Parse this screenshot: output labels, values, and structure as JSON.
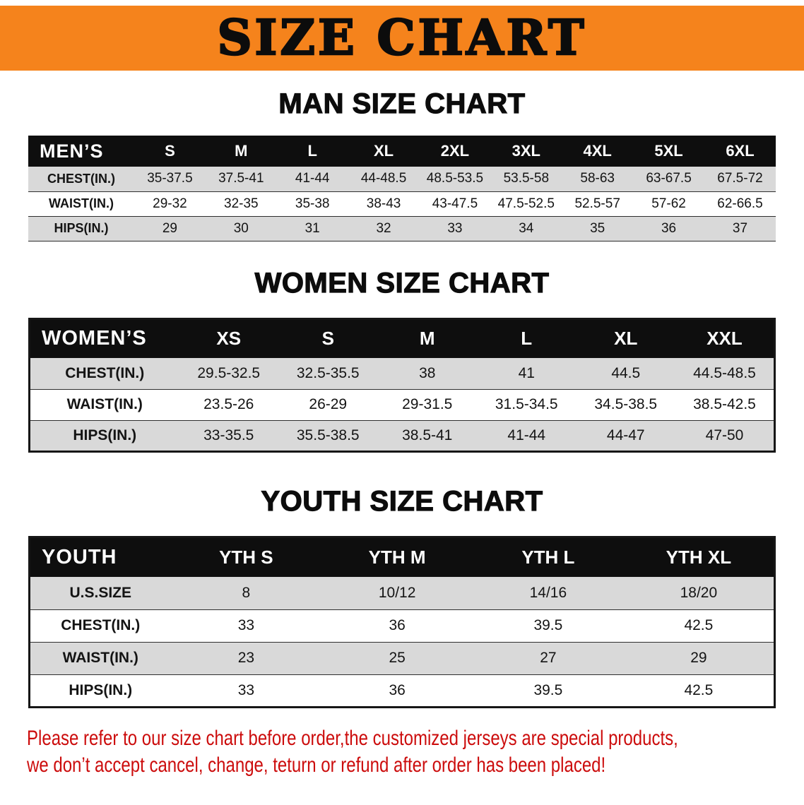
{
  "banner": {
    "title": "SIZE CHART"
  },
  "colors": {
    "banner_bg": "#f5831c",
    "table_header_bg": "#0e0e0e",
    "stripe_row": "#d9d9d9",
    "disclaimer_text": "#cc0c0c"
  },
  "men": {
    "heading": "MAN SIZE CHART",
    "label": "MEN’S",
    "columns": [
      "S",
      "M",
      "L",
      "XL",
      "2XL",
      "3XL",
      "4XL",
      "5XL",
      "6XL"
    ],
    "rows": [
      {
        "label": "CHEST(IN.)",
        "values": [
          "35-37.5",
          "37.5-41",
          "41-44",
          "44-48.5",
          "48.5-53.5",
          "53.5-58",
          "58-63",
          "63-67.5",
          "67.5-72"
        ]
      },
      {
        "label": "WAIST(IN.)",
        "values": [
          "29-32",
          "32-35",
          "35-38",
          "38-43",
          "43-47.5",
          "47.5-52.5",
          "52.5-57",
          "57-62",
          "62-66.5"
        ]
      },
      {
        "label": "HIPS(IN.)",
        "values": [
          "29",
          "30",
          "31",
          "32",
          "33",
          "34",
          "35",
          "36",
          "37"
        ]
      }
    ]
  },
  "women": {
    "heading": "WOMEN SIZE CHART",
    "label": "WOMEN’S",
    "columns": [
      "XS",
      "S",
      "M",
      "L",
      "XL",
      "XXL"
    ],
    "rows": [
      {
        "label": "CHEST(IN.)",
        "values": [
          "29.5-32.5",
          "32.5-35.5",
          "38",
          "41",
          "44.5",
          "44.5-48.5"
        ]
      },
      {
        "label": "WAIST(IN.)",
        "values": [
          "23.5-26",
          "26-29",
          "29-31.5",
          "31.5-34.5",
          "34.5-38.5",
          "38.5-42.5"
        ]
      },
      {
        "label": "HIPS(IN.)",
        "values": [
          "33-35.5",
          "35.5-38.5",
          "38.5-41",
          "41-44",
          "44-47",
          "47-50"
        ]
      }
    ]
  },
  "youth": {
    "heading": "YOUTH SIZE CHART",
    "label": "YOUTH",
    "columns": [
      "YTH S",
      "YTH M",
      "YTH L",
      "YTH XL"
    ],
    "rows": [
      {
        "label": "U.S.SIZE",
        "values": [
          "8",
          "10/12",
          "14/16",
          "18/20"
        ]
      },
      {
        "label": "CHEST(IN.)",
        "values": [
          "33",
          "36",
          "39.5",
          "42.5"
        ]
      },
      {
        "label": "WAIST(IN.)",
        "values": [
          "23",
          "25",
          "27",
          "29"
        ]
      },
      {
        "label": "HIPS(IN.)",
        "values": [
          "33",
          "36",
          "39.5",
          "42.5"
        ]
      }
    ]
  },
  "disclaimer": {
    "line1": "Please refer to our size chart before order,the customized jerseys are special products,",
    "line2": "we don’t accept cancel, change, teturn or refund after order has been placed!"
  }
}
